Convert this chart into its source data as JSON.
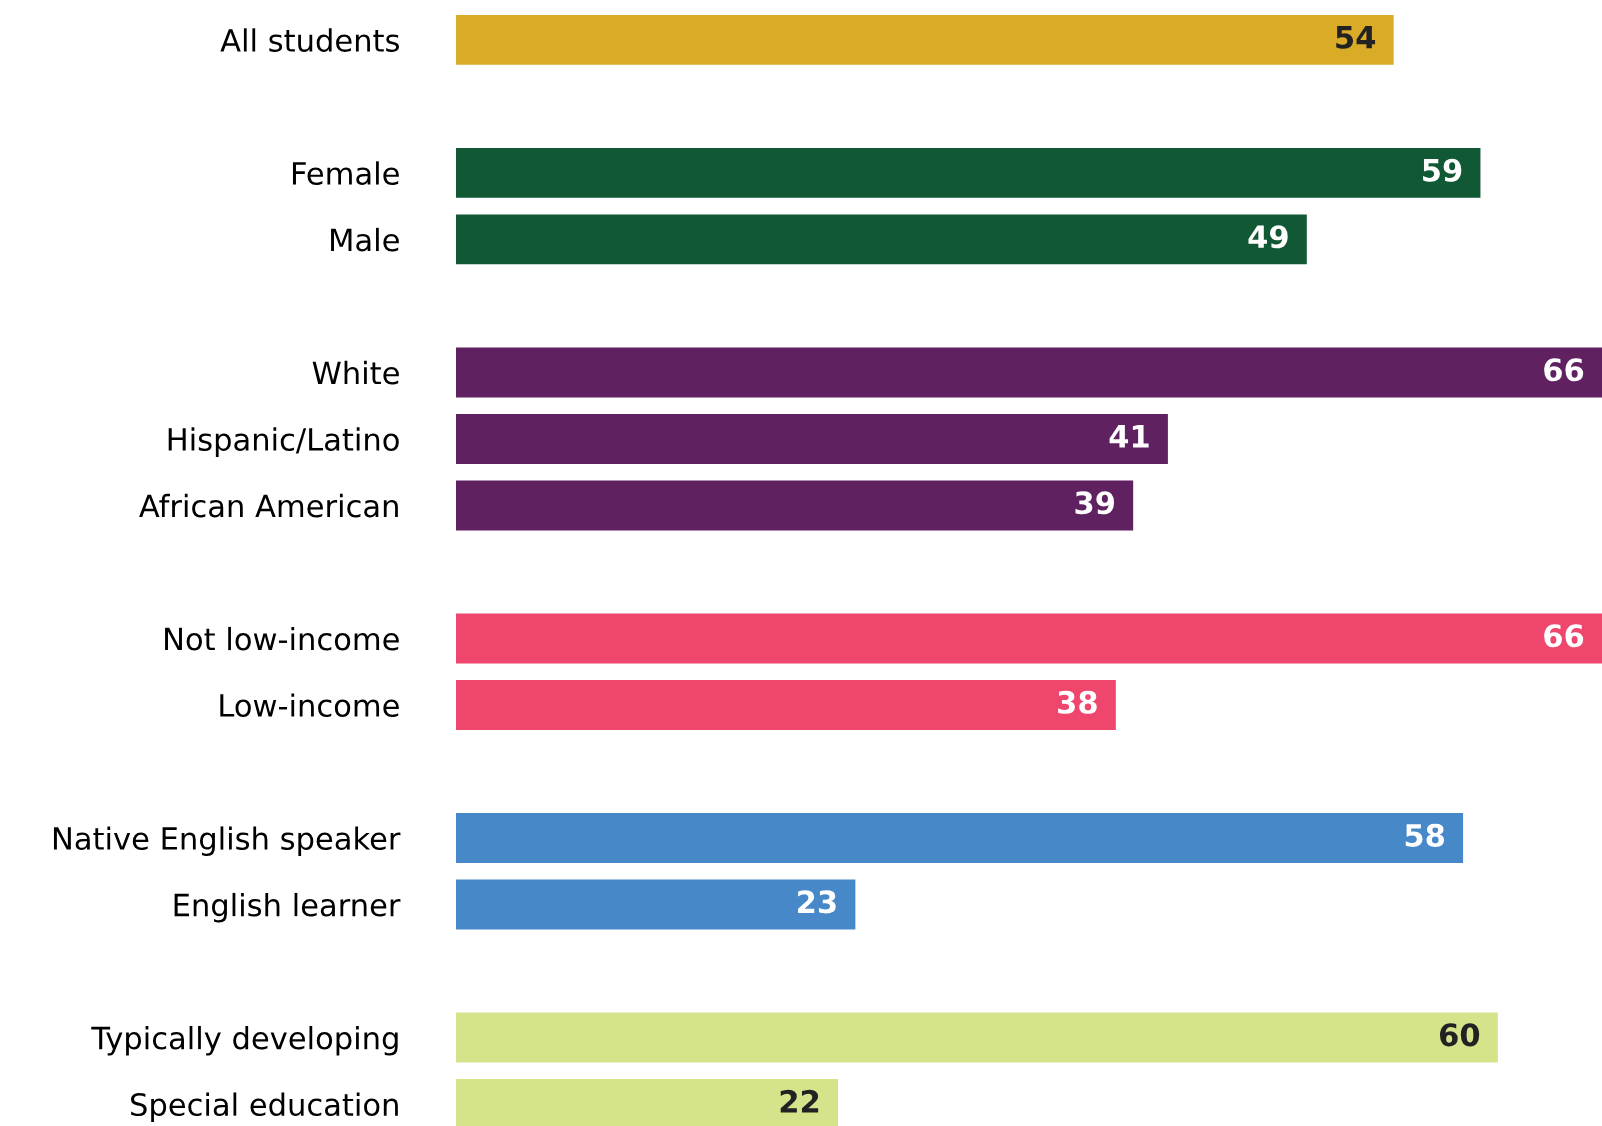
{
  "chart_data": {
    "type": "bar",
    "orientation": "horizontal",
    "data_labels": true,
    "categories": [
      "All students",
      null,
      "Female",
      "Male",
      null,
      "White",
      "Hispanic/Latino",
      "African American",
      null,
      "Not low-income",
      "Low-income",
      null,
      "Native English speaker",
      "English learner",
      null,
      "Typically developing",
      "Special education"
    ],
    "values": [
      54,
      null,
      59,
      49,
      null,
      66,
      41,
      39,
      null,
      66,
      38,
      null,
      58,
      23,
      null,
      60,
      22
    ],
    "colors": [
      "#d9ab27",
      null,
      "#115934",
      "#115934",
      null,
      "#5f2160",
      "#5f2160",
      "#5f2160",
      null,
      "#ef466e",
      "#ef466e",
      null,
      "#4788c8",
      "#4788c8",
      null,
      "#d5e38a",
      "#d5e38a"
    ]
  }
}
